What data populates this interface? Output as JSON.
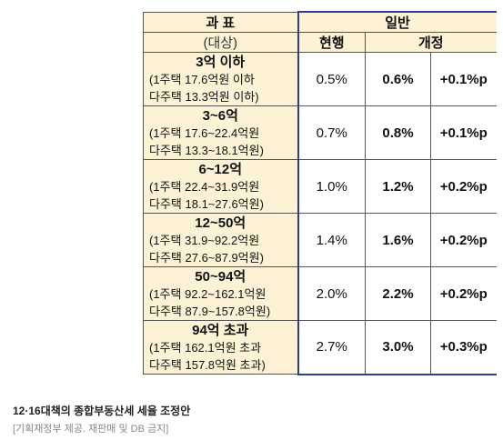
{
  "table": {
    "header": {
      "col1_title": "과  표",
      "col1_sub": "(대상)",
      "group": "일반",
      "current": "현행",
      "revised": "개정"
    },
    "rows": [
      {
        "title": "3억 이하",
        "line1": "(1주택 17.6억원 이하",
        "line2": "다주택 13.3억원 이하)",
        "current": "0.5%",
        "revised": "0.6%",
        "diff": "+0.1%p"
      },
      {
        "title": "3~6억",
        "line1": "(1주택 17.6~22.4억원",
        "line2": "다주택 13.3~18.1억원)",
        "current": "0.7%",
        "revised": "0.8%",
        "diff": "+0.1%p"
      },
      {
        "title": "6~12억",
        "line1": "(1주택 22.4~31.9억원",
        "line2": "다주택 18.1~27.6억원)",
        "current": "1.0%",
        "revised": "1.2%",
        "diff": "+0.2%p"
      },
      {
        "title": "12~50억",
        "line1": "(1주택 31.9~92.2억원",
        "line2": "다주택 27.6~87.9억원)",
        "current": "1.4%",
        "revised": "1.6%",
        "diff": "+0.2%p"
      },
      {
        "title": "50~94억",
        "line1": "(1주택 92.2~162.1억원",
        "line2": "다주택 87.9~157.8억원)",
        "current": "2.0%",
        "revised": "2.2%",
        "diff": "+0.2%p"
      },
      {
        "title": "94억 초과",
        "line1": "(1주택 162.1억원 초과",
        "line2": "다주택 157.8억원 초과)",
        "current": "2.7%",
        "revised": "3.0%",
        "diff": "+0.3%p"
      }
    ]
  },
  "caption": "12·16대책의 종합부동산세 세율 조정안",
  "source": "[기획재정부 제공. 재판매 및 DB 금지]",
  "colors": {
    "header_bg": "#fdf2d6",
    "group_border": "#2c3e9c",
    "border": "#555555"
  }
}
